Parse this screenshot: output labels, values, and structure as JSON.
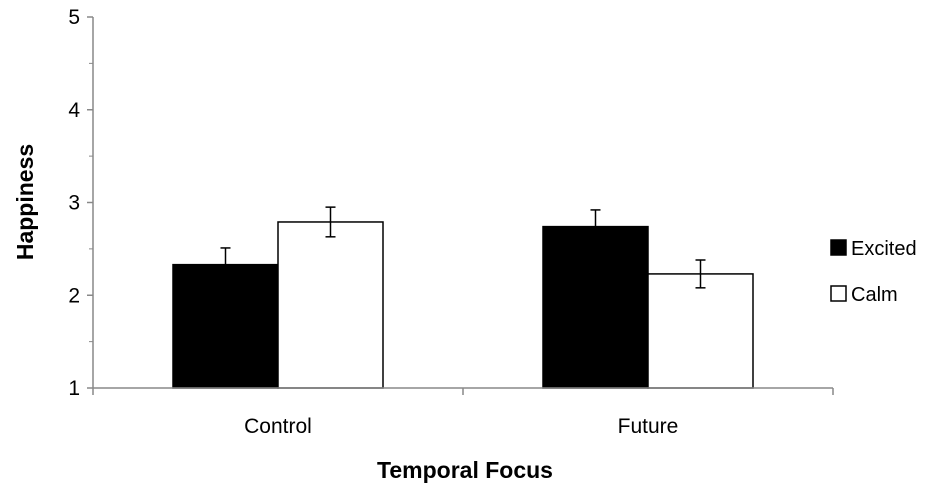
{
  "chart_data": {
    "type": "bar",
    "xlabel": "Temporal Focus",
    "ylabel": "Happiness",
    "ylim": [
      1,
      5
    ],
    "yticks": [
      1,
      2,
      3,
      4,
      5
    ],
    "categories": [
      "Control",
      "Future"
    ],
    "series": [
      {
        "name": "Excited",
        "fill": "#000000",
        "values": [
          2.33,
          2.74
        ],
        "errors": [
          0.18,
          0.18
        ]
      },
      {
        "name": "Calm",
        "fill": "#ffffff",
        "values": [
          2.79,
          2.23
        ],
        "errors": [
          0.16,
          0.15
        ]
      }
    ],
    "legend": "right",
    "grid": false
  }
}
